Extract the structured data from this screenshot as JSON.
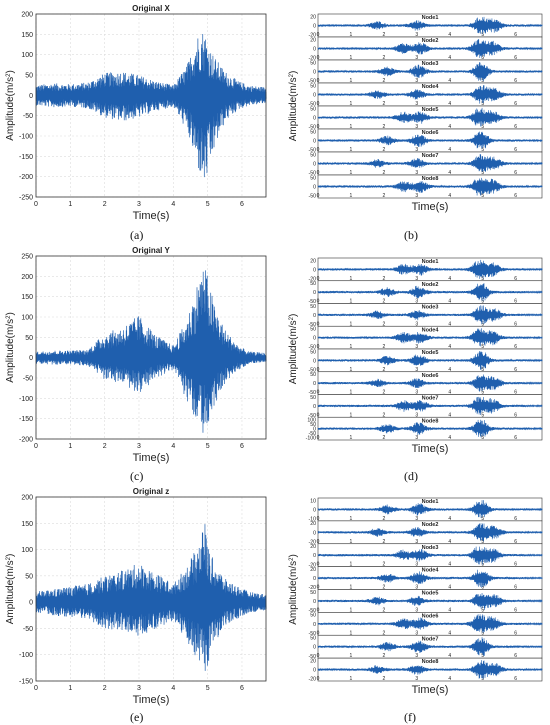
{
  "figure": {
    "signal_color": "#1f5fae",
    "panel_labels": [
      "(a)",
      "(b)",
      "(c)",
      "(d)",
      "(e)",
      "(f)"
    ]
  },
  "chart_data": [
    {
      "type": "line",
      "panel": "(a)",
      "title": "Original X",
      "xlabel": "Time(s)",
      "ylabel": "Amplitude(m/s2)",
      "xlim": [
        0,
        6.7
      ],
      "ylim": [
        -250,
        200
      ],
      "xticks": [
        0,
        1,
        2,
        3,
        4,
        5,
        6
      ],
      "yticks": [
        200,
        150,
        100,
        50,
        0,
        -50,
        -100,
        -150,
        -200,
        -250
      ],
      "grid": true,
      "envelope": {
        "t": [
          0,
          0.5,
          1,
          1.5,
          2,
          2.5,
          3,
          3.5,
          4,
          4.4,
          4.7,
          4.9,
          5.0,
          5.2,
          5.5,
          5.9,
          6.2,
          6.7
        ],
        "upper": [
          25,
          30,
          28,
          32,
          55,
          60,
          50,
          35,
          25,
          75,
          150,
          165,
          130,
          95,
          60,
          35,
          25,
          20
        ],
        "lower": [
          -25,
          -30,
          -28,
          -32,
          -55,
          -65,
          -55,
          -38,
          -28,
          -90,
          -180,
          -225,
          -200,
          -130,
          -65,
          -35,
          -25,
          -20
        ]
      }
    },
    {
      "type": "line",
      "panel": "(b)",
      "title": "",
      "xlabel": "Time(s)",
      "ylabel": "Amplitude(m/s2)",
      "xlim": [
        0,
        6.8
      ],
      "xticks": [
        0,
        1,
        2,
        3,
        4,
        5,
        6
      ],
      "series": [
        {
          "name": "Node1",
          "yticks": [
            20,
            0,
            -20
          ]
        },
        {
          "name": "Node2",
          "yticks": [
            20,
            0,
            -20
          ]
        },
        {
          "name": "Node3",
          "yticks": [
            50,
            0,
            -50
          ]
        },
        {
          "name": "Node4",
          "yticks": [
            50,
            0,
            -50
          ]
        },
        {
          "name": "Node5",
          "yticks": [
            50,
            0,
            -50
          ]
        },
        {
          "name": "Node6",
          "yticks": [
            50,
            0,
            -50
          ]
        },
        {
          "name": "Node7",
          "yticks": [
            50,
            0,
            -50
          ]
        },
        {
          "name": "Node8",
          "yticks": [
            50,
            0,
            -50
          ]
        }
      ]
    },
    {
      "type": "line",
      "panel": "(c)",
      "title": "Original Y",
      "xlabel": "Time(s)",
      "ylabel": "Amplitude(m/s2)",
      "xlim": [
        0,
        6.7
      ],
      "ylim": [
        -200,
        250
      ],
      "xticks": [
        0,
        1,
        2,
        3,
        4,
        5,
        6
      ],
      "yticks": [
        250,
        200,
        150,
        100,
        50,
        0,
        -50,
        -100,
        -150,
        -200
      ],
      "grid": true,
      "envelope": {
        "t": [
          0,
          0.5,
          1,
          1.5,
          2,
          2.5,
          3,
          3.5,
          4,
          4.4,
          4.7,
          4.9,
          5.0,
          5.2,
          5.5,
          5.9,
          6.2,
          6.7
        ],
        "upper": [
          15,
          18,
          18,
          20,
          60,
          75,
          105,
          55,
          30,
          95,
          185,
          235,
          200,
          130,
          70,
          30,
          15,
          12
        ],
        "lower": [
          -15,
          -18,
          -18,
          -20,
          -55,
          -65,
          -90,
          -50,
          -30,
          -110,
          -165,
          -190,
          -175,
          -120,
          -65,
          -30,
          -15,
          -12
        ]
      }
    },
    {
      "type": "line",
      "panel": "(d)",
      "title": "",
      "xlabel": "Time(s)",
      "ylabel": "Amplitude(m/s2)",
      "xlim": [
        0,
        6.8
      ],
      "xticks": [
        0,
        1,
        2,
        3,
        4,
        5,
        6
      ],
      "series": [
        {
          "name": "Node1",
          "yticks": [
            20,
            0,
            -20
          ]
        },
        {
          "name": "Node2",
          "yticks": [
            50,
            0,
            -50
          ]
        },
        {
          "name": "Node3",
          "yticks": [
            50,
            0,
            -50
          ]
        },
        {
          "name": "Node4",
          "yticks": [
            50,
            0,
            -50
          ]
        },
        {
          "name": "Node5",
          "yticks": [
            50,
            0,
            -50
          ]
        },
        {
          "name": "Node6",
          "yticks": [
            50,
            0,
            -50
          ]
        },
        {
          "name": "Node7",
          "yticks": [
            50,
            0,
            -50
          ]
        },
        {
          "name": "Node8",
          "yticks": [
            100,
            50,
            0,
            -50,
            -100
          ]
        }
      ]
    },
    {
      "type": "line",
      "panel": "(e)",
      "title": "Original z",
      "xlabel": "Time(s)",
      "ylabel": "Amplitude(m/s2)",
      "xlim": [
        0,
        6.7
      ],
      "ylim": [
        -150,
        200
      ],
      "xticks": [
        0,
        1,
        2,
        3,
        4,
        5,
        6
      ],
      "yticks": [
        200,
        150,
        100,
        50,
        0,
        -50,
        -100,
        -150
      ],
      "grid": true,
      "envelope": {
        "t": [
          0,
          0.5,
          1,
          1.5,
          2,
          2.5,
          3,
          3.5,
          4,
          4.4,
          4.7,
          4.9,
          5.0,
          5.2,
          5.5,
          5.9,
          6.2,
          6.7
        ],
        "upper": [
          20,
          25,
          30,
          35,
          50,
          60,
          75,
          55,
          35,
          70,
          105,
          165,
          110,
          75,
          45,
          30,
          20,
          15
        ],
        "lower": [
          -20,
          -25,
          -30,
          -35,
          -50,
          -55,
          -65,
          -50,
          -35,
          -75,
          -110,
          -145,
          -120,
          -80,
          -45,
          -30,
          -20,
          -15
        ]
      }
    },
    {
      "type": "line",
      "panel": "(f)",
      "title": "",
      "xlabel": "Time(s)",
      "ylabel": "Amplitude(m/s2)",
      "xlim": [
        0,
        6.8
      ],
      "xticks": [
        0,
        1,
        2,
        3,
        4,
        5,
        6
      ],
      "series": [
        {
          "name": "Node1",
          "yticks": [
            10,
            0,
            -10
          ]
        },
        {
          "name": "Node2",
          "yticks": [
            20,
            0,
            -20
          ]
        },
        {
          "name": "Node3",
          "yticks": [
            20,
            0,
            -20
          ]
        },
        {
          "name": "Node4",
          "yticks": [
            20,
            0,
            -20
          ]
        },
        {
          "name": "Node5",
          "yticks": [
            50,
            0,
            -50
          ]
        },
        {
          "name": "Node6",
          "yticks": [
            50,
            0,
            -50
          ]
        },
        {
          "name": "Node7",
          "yticks": [
            50,
            0,
            -50
          ]
        },
        {
          "name": "Node8",
          "yticks": [
            20,
            0,
            -20
          ]
        }
      ]
    }
  ]
}
